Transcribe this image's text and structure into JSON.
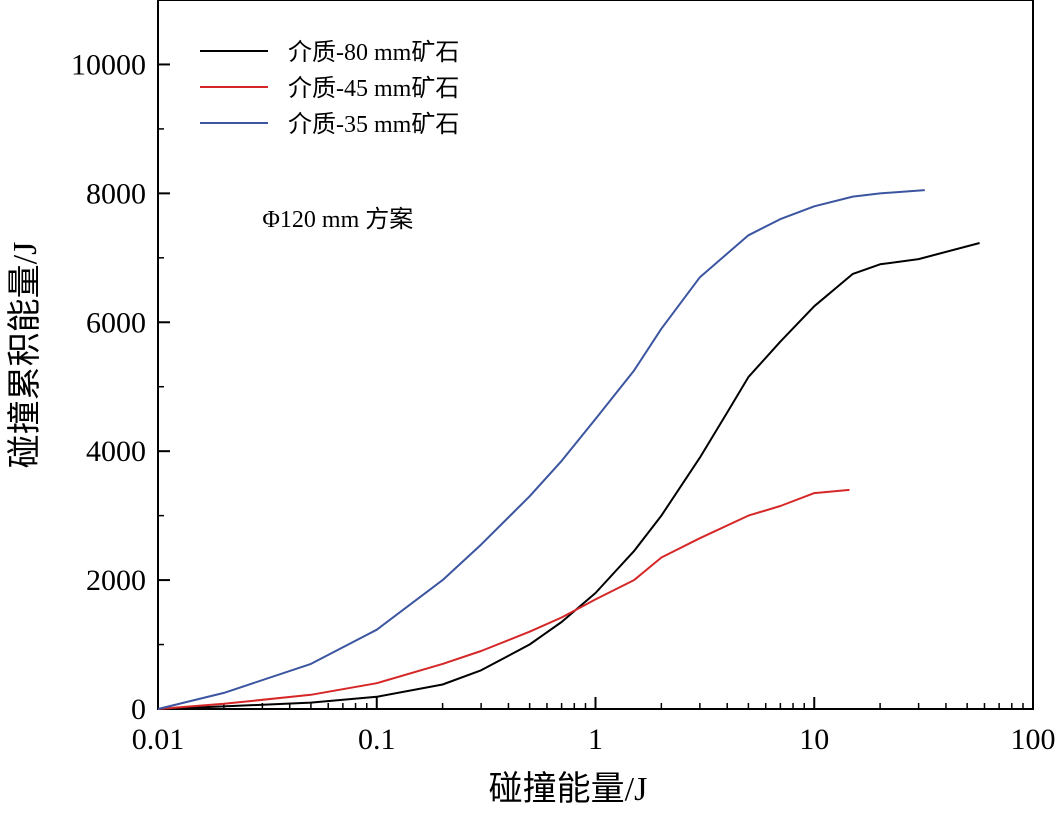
{
  "chart_data": {
    "type": "line",
    "title": "",
    "xlabel": "碰撞能量/J",
    "ylabel": "碰撞累积能量/J",
    "xscale": "log",
    "xlim": [
      0.01,
      100
    ],
    "ylim": [
      0,
      11000
    ],
    "grid": false,
    "legend_position": "top-left",
    "x_ticks": [
      {
        "value": 0.01,
        "label": "0.01"
      },
      {
        "value": 0.1,
        "label": "0.1"
      },
      {
        "value": 1,
        "label": "1"
      },
      {
        "value": 10,
        "label": "10"
      },
      {
        "value": 100,
        "label": "100"
      }
    ],
    "y_ticks": [
      {
        "value": 0,
        "label": "0"
      },
      {
        "value": 2000,
        "label": "2000"
      },
      {
        "value": 4000,
        "label": "4000"
      },
      {
        "value": 6000,
        "label": "6000"
      },
      {
        "value": 8000,
        "label": "8000"
      },
      {
        "value": 10000,
        "label": "10000"
      }
    ],
    "annotations": [
      {
        "text": "Φ120 mm 方案",
        "x": 0.03,
        "y": 7600
      }
    ],
    "series": [
      {
        "name": "介质-80 mm矿石",
        "color": "#000000",
        "x": [
          0.01,
          0.02,
          0.05,
          0.1,
          0.2,
          0.3,
          0.5,
          0.7,
          1.0,
          1.5,
          2.0,
          3.0,
          4.0,
          5.0,
          7.0,
          10.0,
          15.0,
          20.0,
          30.0,
          57.0
        ],
        "y": [
          0,
          40,
          100,
          190,
          380,
          600,
          1000,
          1350,
          1800,
          2450,
          3000,
          3900,
          4600,
          5150,
          5700,
          6250,
          6750,
          6900,
          6980,
          7230
        ]
      },
      {
        "name": "介质-45 mm矿石",
        "color": "#d62728",
        "x": [
          0.01,
          0.02,
          0.05,
          0.1,
          0.2,
          0.3,
          0.5,
          0.7,
          1.0,
          1.5,
          2.0,
          3.0,
          5.0,
          7.0,
          10.0,
          14.5
        ],
        "y": [
          0,
          80,
          220,
          400,
          700,
          900,
          1200,
          1420,
          1700,
          2000,
          2350,
          2650,
          3000,
          3150,
          3350,
          3400
        ]
      },
      {
        "name": "介质-35 mm矿石",
        "color": "#3b55a0",
        "x": [
          0.01,
          0.02,
          0.05,
          0.1,
          0.2,
          0.3,
          0.5,
          0.7,
          1.0,
          1.5,
          2.0,
          3.0,
          5.0,
          7.0,
          10.0,
          15.0,
          20.0,
          32.0
        ],
        "y": [
          0,
          250,
          700,
          1230,
          2000,
          2550,
          3300,
          3850,
          4500,
          5250,
          5900,
          6700,
          7350,
          7600,
          7800,
          7950,
          8000,
          8050
        ]
      }
    ]
  }
}
